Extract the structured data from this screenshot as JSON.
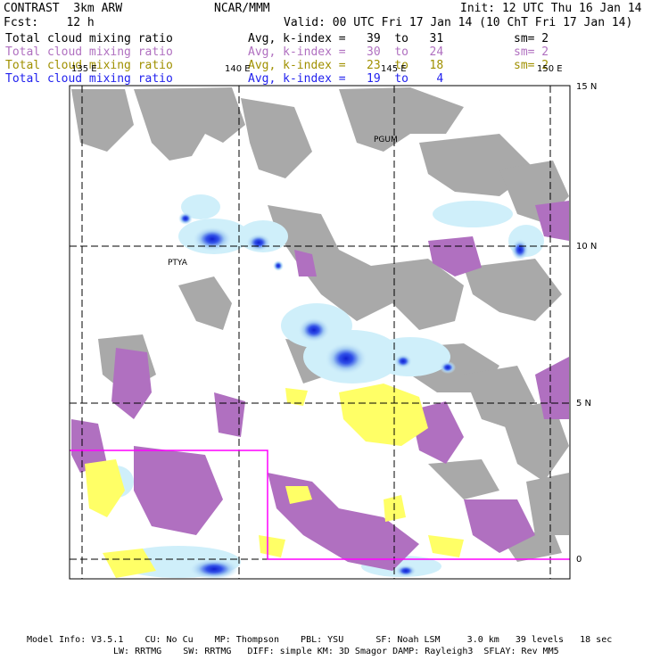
{
  "header": {
    "left_line1": "CONTRAST  3km ARW",
    "center_line1": "NCAR/MMM",
    "right_line1": "Init: 12 UTC Thu 16 Jan 14",
    "left_line2": "Fcst:    12 h",
    "right_line2": "Valid: 00 UTC Fri 17 Jan 14 (10 ChT Fri 17 Jan 14)"
  },
  "legend": [
    {
      "label": "Total cloud mixing ratio",
      "stat": "Avg, k-index =   39  to   31",
      "sm": "sm= 2",
      "color": "#000000"
    },
    {
      "label": "Total cloud mixing ratio",
      "stat": "Avg, k-index =   30  to   24",
      "sm": "sm= 2",
      "color": "#b070c0"
    },
    {
      "label": "Total cloud mixing ratio",
      "stat": "Avg, k-index =   23  to   18",
      "sm": "sm= 2",
      "color": "#a09000"
    },
    {
      "label": "Total cloud mixing ratio",
      "stat": "Avg, k-index =   19  to    4",
      "sm": "",
      "color": "#2222ee"
    }
  ],
  "map": {
    "lon_labels": [
      "135 E",
      "140 E",
      "145 E",
      "150 E"
    ],
    "lat_labels": [
      "15 N",
      "10 N",
      "5 N",
      "0"
    ],
    "place_labels": [
      "PGUM",
      "PTYA"
    ],
    "colors": {
      "gray_cloud": "#a9a9a9",
      "purple_cloud": "#b070c0",
      "yellow_cloud": "#ffff66",
      "lightblue_cloud": "#cfeffa",
      "blue_core": "#2030e0",
      "subdomain_box": "#ff00ff"
    }
  },
  "footer": {
    "line1": "Model Info: V3.5.1    CU: No Cu    MP: Thompson    PBL: YSU      SF: Noah LSM     3.0 km   39 levels   18 sec",
    "line2": "LW: RRTMG    SW: RRTMG   DIFF: simple KM: 3D Smagor DAMP: Rayleigh3  SFLAY: Rev MM5"
  }
}
